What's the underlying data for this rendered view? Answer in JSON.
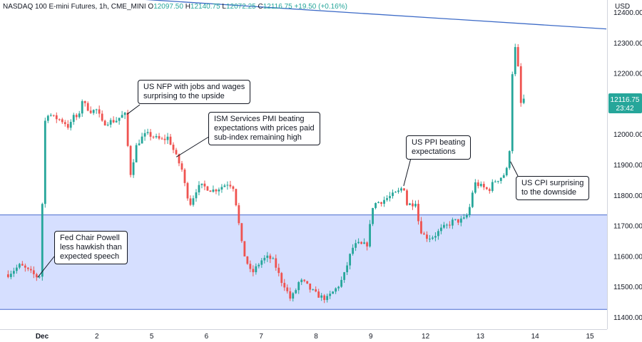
{
  "header": {
    "instrument": "NASDAQ 100 E-mini Futures, 1h, CME_MINI",
    "open_label": "O",
    "open": "12097.50",
    "high_label": "H",
    "high": "12140.75",
    "low_label": "L",
    "low": "12072.25",
    "close_label": "C",
    "close": "12116.75",
    "change": "+19.50 (+0.16%)"
  },
  "price_axis": {
    "unit": "USD"
  },
  "last_price": {
    "value": "12116.75",
    "countdown": "23:42"
  },
  "colors": {
    "up": "#26a69a",
    "down": "#ef5350",
    "zone_fill": "#d6dfff",
    "zone_line": "#4a6ccf",
    "trendline": "#3d6bc7",
    "price_tag": "#26a69a",
    "axis_text": "#131722"
  },
  "annotations": [
    {
      "id": "fed",
      "lines": [
        "Fed Chair Powell",
        "less hawkish than",
        "expected speech"
      ]
    },
    {
      "id": "nfp",
      "lines": [
        "US NFP with jobs and wages",
        "surprising to the upside"
      ]
    },
    {
      "id": "ism",
      "lines": [
        "ISM Services PMI beating",
        "expectations with prices paid",
        "sub-index remaining high"
      ]
    },
    {
      "id": "ppi",
      "lines": [
        "US PPI beating",
        "expectations"
      ]
    },
    {
      "id": "cpi",
      "lines": [
        "US CPI surprising",
        "to the downside"
      ]
    }
  ],
  "chart_data": {
    "type": "candlestick",
    "x_ticks": [
      {
        "label": "Dec",
        "t": 0
      },
      {
        "label": "2",
        "t": 1
      },
      {
        "label": "5",
        "t": 2
      },
      {
        "label": "6",
        "t": 3
      },
      {
        "label": "7",
        "t": 4
      },
      {
        "label": "8",
        "t": 5
      },
      {
        "label": "9",
        "t": 6
      },
      {
        "label": "12",
        "t": 7
      },
      {
        "label": "13",
        "t": 8
      },
      {
        "label": "14",
        "t": 9
      },
      {
        "label": "15",
        "t": 10
      }
    ],
    "y_ticks": [
      12400,
      12300,
      12200,
      12100,
      12000,
      11900,
      11800,
      11700,
      11600,
      11500,
      11400
    ],
    "ylim": [
      11360,
      12440
    ],
    "support_zone": [
      11425,
      11735
    ],
    "trendline": {
      "from": [
        -0.6,
        12470
      ],
      "to": [
        10.3,
        12345
      ]
    },
    "path": [
      [
        -0.62,
        11540
      ],
      [
        -0.4,
        11570
      ],
      [
        -0.2,
        11545
      ],
      [
        -0.08,
        11530
      ],
      [
        -0.02,
        11540
      ],
      [
        0.0,
        11748
      ],
      [
        0.03,
        11930
      ],
      [
        0.06,
        12060
      ],
      [
        0.12,
        12070
      ],
      [
        0.2,
        12055
      ],
      [
        0.3,
        12050
      ],
      [
        0.4,
        12040
      ],
      [
        0.5,
        12020
      ],
      [
        0.58,
        12065
      ],
      [
        0.65,
        12040
      ],
      [
        0.72,
        12115
      ],
      [
        0.8,
        12090
      ],
      [
        0.9,
        12075
      ],
      [
        1.0,
        12080
      ],
      [
        1.1,
        12035
      ],
      [
        1.2,
        12040
      ],
      [
        1.35,
        12045
      ],
      [
        1.45,
        12060
      ],
      [
        1.55,
        12065
      ],
      [
        1.58,
        11840
      ],
      [
        1.65,
        11900
      ],
      [
        1.72,
        11960
      ],
      [
        1.8,
        11985
      ],
      [
        1.9,
        12000
      ],
      [
        2.0,
        11995
      ],
      [
        2.1,
        11985
      ],
      [
        2.2,
        11980
      ],
      [
        2.3,
        11990
      ],
      [
        2.38,
        11955
      ],
      [
        2.45,
        11925
      ],
      [
        2.55,
        11885
      ],
      [
        2.62,
        11820
      ],
      [
        2.7,
        11770
      ],
      [
        2.75,
        11790
      ],
      [
        2.82,
        11820
      ],
      [
        2.9,
        11830
      ],
      [
        3.0,
        11825
      ],
      [
        3.1,
        11815
      ],
      [
        3.2,
        11820
      ],
      [
        3.3,
        11830
      ],
      [
        3.4,
        11840
      ],
      [
        3.5,
        11825
      ],
      [
        3.58,
        11720
      ],
      [
        3.66,
        11620
      ],
      [
        3.74,
        11580
      ],
      [
        3.82,
        11540
      ],
      [
        3.9,
        11560
      ],
      [
        4.0,
        11585
      ],
      [
        4.1,
        11595
      ],
      [
        4.2,
        11590
      ],
      [
        4.28,
        11560
      ],
      [
        4.36,
        11520
      ],
      [
        4.44,
        11500
      ],
      [
        4.52,
        11460
      ],
      [
        4.6,
        11475
      ],
      [
        4.7,
        11520
      ],
      [
        4.8,
        11510
      ],
      [
        4.9,
        11490
      ],
      [
        5.0,
        11475
      ],
      [
        5.1,
        11465
      ],
      [
        5.2,
        11460
      ],
      [
        5.3,
        11480
      ],
      [
        5.4,
        11500
      ],
      [
        5.5,
        11530
      ],
      [
        5.6,
        11590
      ],
      [
        5.66,
        11625
      ],
      [
        5.75,
        11640
      ],
      [
        5.85,
        11635
      ],
      [
        5.95,
        11640
      ],
      [
        6.02,
        11760
      ],
      [
        6.1,
        11775
      ],
      [
        6.2,
        11780
      ],
      [
        6.3,
        11790
      ],
      [
        6.4,
        11800
      ],
      [
        6.5,
        11810
      ],
      [
        6.6,
        11830
      ],
      [
        6.66,
        11770
      ],
      [
        6.75,
        11770
      ],
      [
        6.82,
        11780
      ],
      [
        6.88,
        11700
      ],
      [
        6.95,
        11670
      ],
      [
        7.05,
        11660
      ],
      [
        7.15,
        11665
      ],
      [
        7.3,
        11690
      ],
      [
        7.4,
        11700
      ],
      [
        7.5,
        11715
      ],
      [
        7.6,
        11715
      ],
      [
        7.7,
        11720
      ],
      [
        7.78,
        11740
      ],
      [
        7.84,
        11790
      ],
      [
        7.88,
        11840
      ],
      [
        7.95,
        11835
      ],
      [
        8.05,
        11825
      ],
      [
        8.15,
        11815
      ],
      [
        8.25,
        11845
      ],
      [
        8.35,
        11855
      ],
      [
        8.45,
        11870
      ],
      [
        8.52,
        11900
      ],
      [
        8.56,
        12070
      ],
      [
        8.6,
        12290
      ],
      [
        8.64,
        12280
      ],
      [
        8.7,
        12200
      ],
      [
        8.74,
        12100
      ],
      [
        8.8,
        12117
      ]
    ]
  }
}
